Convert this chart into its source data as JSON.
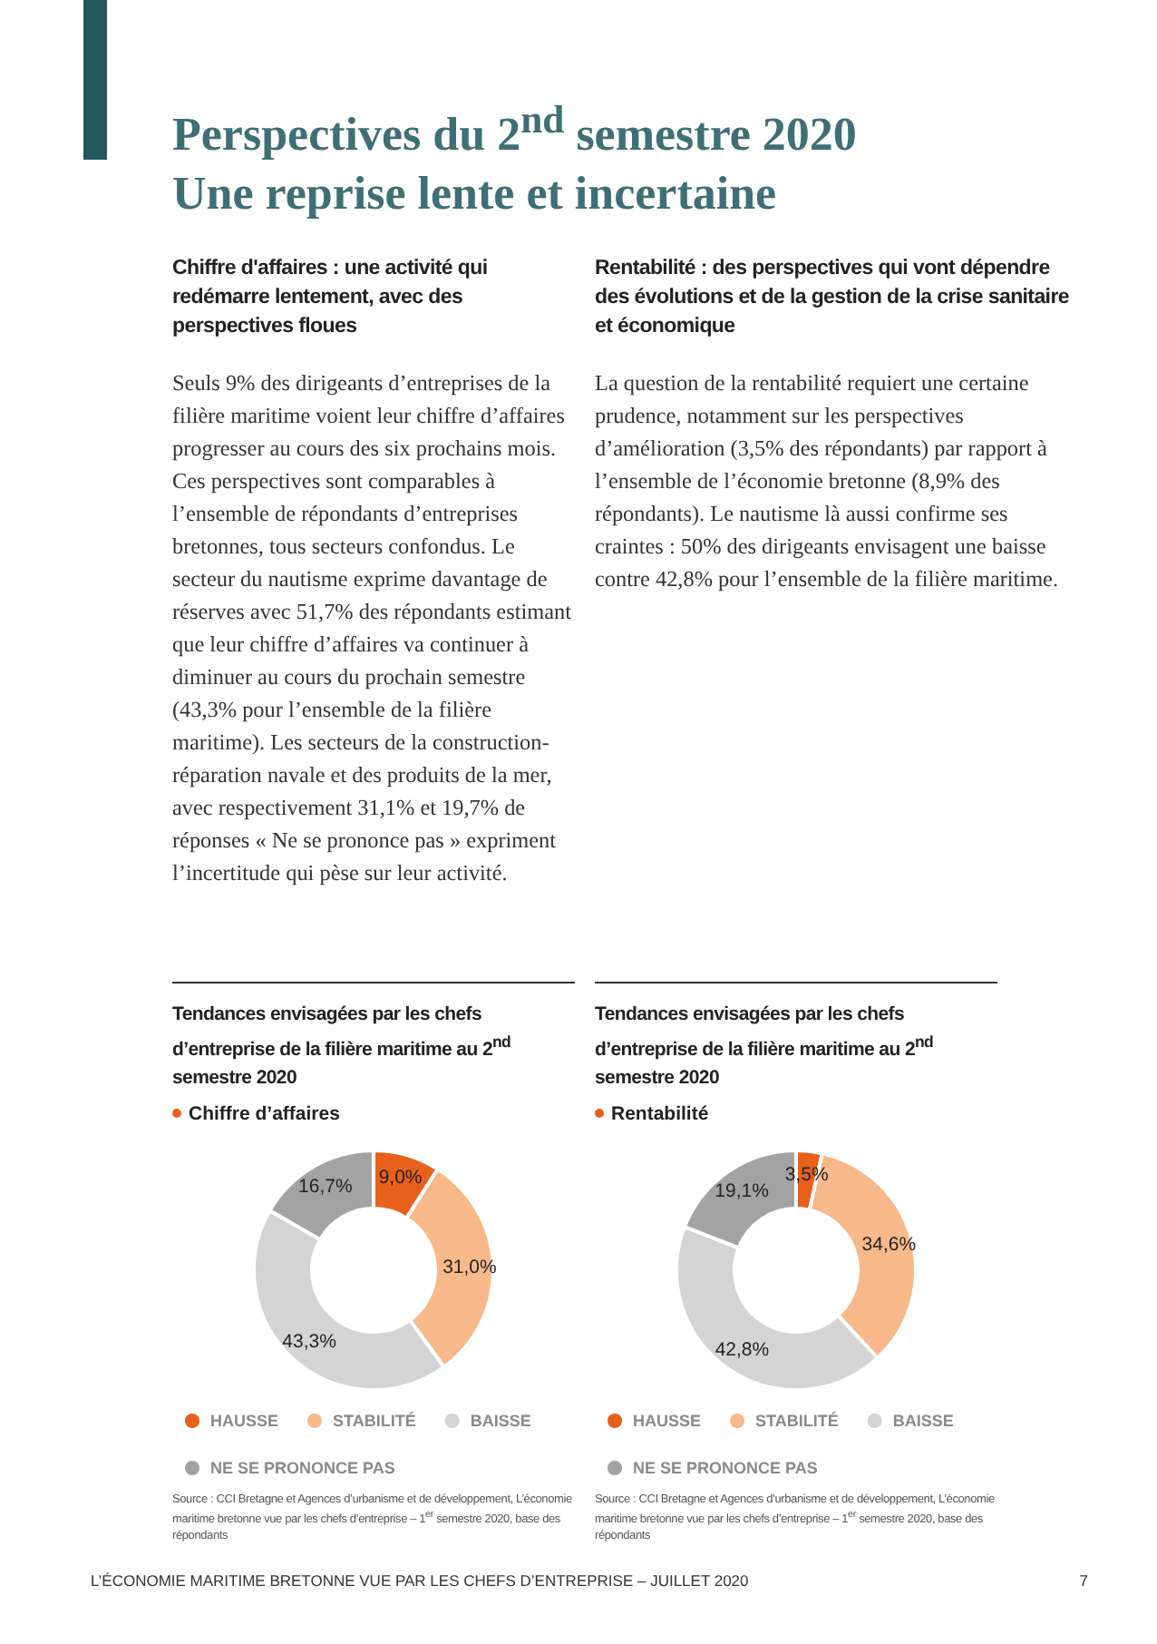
{
  "chart_data": [
    {
      "type": "other",
      "title": "Perspectives du 2$^{nd}$ semestre 2020",
      "subtitle": "Une reprise lente et incertaine",
      "annotations": [
        "Chiffre d'affaires : une activité qui redémarre lentement, avec des perspectives floues",
        "Seuls 9% des dirigeants d’entreprises de la filière maritime voient leur chiffre d’affaires progresser au cours des six prochains mois. Ces perspectives sont comparables à l’ensemble de répondants d’entreprises bretonnes, tous secteurs confondus. Le secteur du nautisme exprime davantage de réserves avec 51,7% des répondants estimant que leur chiffre d’affaires va continuer à diminuer au cours du prochain semestre (43,3% pour l’ensemble de la filière maritime). Les secteurs de la construction-réparation navale et des produits de la mer, avec respectivement 31,1% et 19,7% de réponses « Ne se prononce pas » expriment l’incertitude qui pèse sur leur activité.",
        "Rentabilité : des perspectives qui vont dépendre des évolutions et de la gestion de la crise sanitaire et économique",
        "La question de la rentabilité requiert une certaine prudence, notamment sur les perspectives d’amélioration (3,5% des répondants) par rapport à l’ensemble de l’économie bretonne (8,9% des répondants). Le nautisme là aussi confirme ses craintes : 50% des dirigeants envisagent une baisse contre 42,8% pour l’ensemble de la filière maritime."
      ]
    },
    {
      "type": "donut",
      "title": "Tendances envisagées par les chefs d’entreprise de la filière maritime au 2$^{nd}$ semestre 2020",
      "subtitle": "Chiffre d’affaires",
      "categories": [
        "HAUSSE",
        "STABILITÉ",
        "BAISSE",
        "NE SE PRONONCE PAS"
      ],
      "values": [
        9.0,
        31.0,
        43.3,
        16.7
      ],
      "value_labels": [
        "9,0%",
        "31,0%",
        "43,3%",
        "16,7%"
      ],
      "colors": [
        "#e8601c",
        "#f7b98a",
        "#d4d4d4",
        "#a3a3a3"
      ],
      "legend": "bottom",
      "annotations": [
        "Source : CCI Bretagne et Agences d’urbanisme et de développement, L’économie maritime bretonne vue par les chefs d’entreprise – 1$^{er}$ semestre 2020, base des répondants"
      ]
    },
    {
      "type": "donut",
      "title": "Tendances envisagées par les chefs d’entreprise de la filière maritime au 2$^{nd}$ semestre 2020",
      "subtitle": "Rentabilité",
      "categories": [
        "HAUSSE",
        "STABILITÉ",
        "BAISSE",
        "NE SE PRONONCE PAS"
      ],
      "values": [
        3.5,
        34.6,
        42.8,
        19.1
      ],
      "value_labels": [
        "3,5%",
        "34,6%",
        "42,8%",
        "19,1%"
      ],
      "colors": [
        "#e8601c",
        "#f7b98a",
        "#d4d4d4",
        "#a3a3a3"
      ],
      "legend": "bottom",
      "annotations": [
        "Source : CCI Bretagne et Agences d’urbanisme et de développement, L’économie maritime bretonne vue par les chefs d’entreprise – 1$^{er}$ semestre 2020, base des répondants"
      ]
    },
    {
      "type": "other",
      "annotations": [
        "L’ÉCONOMIE MARITIME BRETONNE VUE PAR LES CHEFS D’ENTREPRISE – JUILLET 2020",
        "7"
      ]
    }
  ]
}
